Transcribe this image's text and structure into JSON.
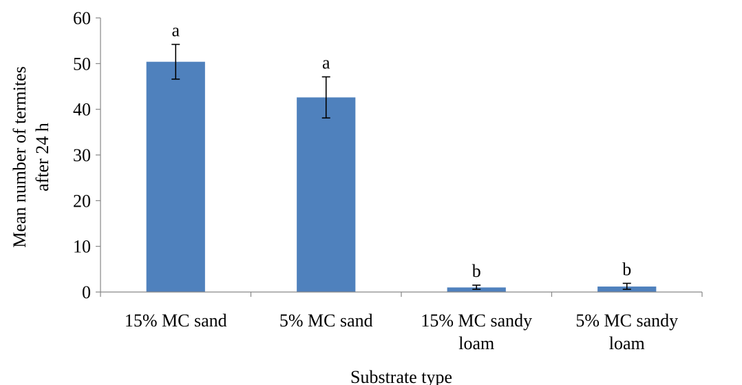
{
  "chart_data": {
    "type": "bar",
    "xlabel": "Substrate type",
    "ylabel_lines": [
      "Mean number of termites",
      "after 24 h"
    ],
    "ylim": [
      0,
      60
    ],
    "yticks": [
      0,
      10,
      20,
      30,
      40,
      50,
      60
    ],
    "grid": false,
    "categories": [
      [
        "15% MC sand"
      ],
      [
        "5% MC sand"
      ],
      [
        "15% MC sandy",
        "loam"
      ],
      [
        "5% MC sandy",
        "loam"
      ]
    ],
    "values": [
      50.4,
      42.6,
      1.0,
      1.2
    ],
    "error_low": [
      46.6,
      38.1,
      0.6,
      0.6
    ],
    "error_high": [
      54.2,
      47.1,
      1.5,
      1.9
    ],
    "letters": [
      "a",
      "a",
      "b",
      "b"
    ],
    "bar_color": "#4f81bd"
  }
}
